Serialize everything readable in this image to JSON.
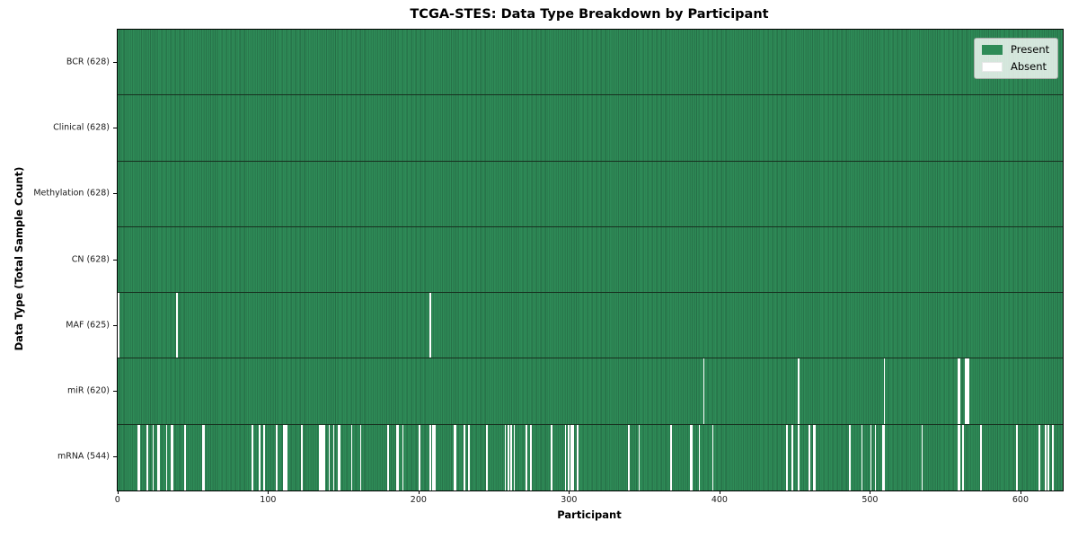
{
  "chart_data": {
    "type": "heatmap",
    "title": "TCGA-STES: Data Type Breakdown by Participant",
    "xlabel": "Participant",
    "ylabel": "Data Type (Total Sample Count)",
    "legend": [
      "Present",
      "Absent"
    ],
    "legend_position": "upper right",
    "colors": {
      "present": "#2e8b57",
      "present_edge": "#215c3c",
      "absent": "#ffffff"
    },
    "n_participants": 628,
    "xlim": [
      -0.5,
      627.5
    ],
    "x_ticks": [
      0,
      100,
      200,
      300,
      400,
      500,
      600
    ],
    "grid": false,
    "rows": [
      {
        "label": "BCR (628)",
        "data_type": "BCR",
        "present_count": 628,
        "absent_participants": []
      },
      {
        "label": "Clinical (628)",
        "data_type": "Clinical",
        "present_count": 628,
        "absent_participants": []
      },
      {
        "label": "Methylation (628)",
        "data_type": "Methylation",
        "present_count": 628,
        "absent_participants": []
      },
      {
        "label": "CN (628)",
        "data_type": "CN",
        "present_count": 628,
        "absent_participants": []
      },
      {
        "label": "MAF (625)",
        "data_type": "MAF",
        "present_count": 625,
        "absent_participants": [
          0,
          39,
          207
        ]
      },
      {
        "label": "miR (620)",
        "data_type": "miR",
        "present_count": 620,
        "absent_participants": [
          389,
          452,
          509,
          558,
          559,
          563,
          564,
          565
        ]
      },
      {
        "label": "mRNA (544)",
        "data_type": "mRNA",
        "present_count": 544,
        "absent_participants": [
          13,
          14,
          19,
          23,
          26,
          27,
          32,
          35,
          36,
          44,
          56,
          57,
          89,
          94,
          97,
          105,
          110,
          111,
          112,
          122,
          134,
          135,
          136,
          137,
          140,
          143,
          146,
          147,
          155,
          161,
          179,
          185,
          186,
          189,
          200,
          207,
          209,
          210,
          223,
          224,
          230,
          233,
          245,
          257,
          259,
          261,
          263,
          271,
          274,
          288,
          297,
          299,
          301,
          302,
          305,
          339,
          346,
          367,
          380,
          381,
          386,
          395,
          444,
          448,
          452,
          459,
          462,
          463,
          486,
          494,
          500,
          503,
          508,
          509,
          534,
          558,
          559,
          561,
          573,
          597,
          612,
          616,
          618,
          621
        ]
      }
    ]
  }
}
